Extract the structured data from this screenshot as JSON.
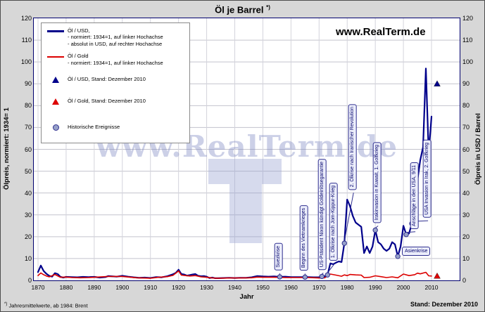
{
  "title": "Öl je Barrel",
  "title_mark": "*)",
  "site_label": "www.RealTerm.de",
  "watermark_text": "www.RealTerm.de",
  "footnote_mark": "*)",
  "footnote_text": "Jahresmittelwerte, ab 1984: Brent",
  "stand_label": "Stand: Dezember 2010",
  "legend": {
    "items": [
      {
        "marker": "line-blue",
        "lines": [
          "Öl / USD,",
          "- normiert: 1934=1, auf linker Hochachse",
          "- absolut in USD, auf rechter Hochachse"
        ]
      },
      {
        "marker": "line-red",
        "lines": [
          "Öl / Gold",
          "- normiert: 1934=1, auf linker Hochachse"
        ]
      },
      {
        "marker": "triangle-blue",
        "lines": [
          "Öl / USD, Stand: Dezember 2010"
        ]
      },
      {
        "marker": "triangle-red",
        "lines": [
          "Öl / Gold, Stand:  Dezember 2010"
        ]
      },
      {
        "marker": "circle",
        "lines": [
          "Historische Ereignisse"
        ]
      }
    ]
  },
  "chart_data": {
    "type": "line",
    "title": "Öl je Barrel",
    "xlabel": "Jahr",
    "ylabel_left": "Ölpreis, normiert: 1934= 1",
    "ylabel_right": "Ölpreis in USD / Barrel",
    "xlim": [
      1870,
      2020
    ],
    "ylim": [
      0,
      120
    ],
    "x_ticks": [
      1870,
      1880,
      1890,
      1900,
      1910,
      1920,
      1930,
      1940,
      1950,
      1960,
      1970,
      1980,
      1990,
      2000,
      2010
    ],
    "y_ticks": [
      0,
      10,
      20,
      30,
      40,
      50,
      60,
      70,
      80,
      90,
      100,
      110,
      120
    ],
    "grid": true,
    "legend_position": "top-left",
    "series": [
      {
        "name": "Öl / USD, normiert 1934=1",
        "color": "#00008B",
        "points": [
          [
            1870,
            3.8
          ],
          [
            1871,
            6.8
          ],
          [
            1872,
            4.3
          ],
          [
            1873,
            3.0
          ],
          [
            1874,
            2.1
          ],
          [
            1875,
            1.7
          ],
          [
            1876,
            3.3
          ],
          [
            1877,
            2.9
          ],
          [
            1878,
            1.6
          ],
          [
            1879,
            1.3
          ],
          [
            1880,
            1.6
          ],
          [
            1882,
            1.5
          ],
          [
            1884,
            1.4
          ],
          [
            1886,
            1.6
          ],
          [
            1888,
            1.5
          ],
          [
            1890,
            1.6
          ],
          [
            1892,
            1.3
          ],
          [
            1894,
            1.5
          ],
          [
            1895,
            2.0
          ],
          [
            1896,
            1.9
          ],
          [
            1898,
            1.7
          ],
          [
            1900,
            2.1
          ],
          [
            1902,
            1.7
          ],
          [
            1904,
            1.4
          ],
          [
            1906,
            1.2
          ],
          [
            1908,
            1.3
          ],
          [
            1910,
            1.1
          ],
          [
            1912,
            1.5
          ],
          [
            1914,
            1.4
          ],
          [
            1916,
            1.9
          ],
          [
            1918,
            2.8
          ],
          [
            1919,
            3.4
          ],
          [
            1920,
            4.9
          ],
          [
            1921,
            2.9
          ],
          [
            1922,
            2.7
          ],
          [
            1923,
            2.2
          ],
          [
            1924,
            2.4
          ],
          [
            1925,
            2.7
          ],
          [
            1926,
            2.9
          ],
          [
            1927,
            2.1
          ],
          [
            1928,
            1.9
          ],
          [
            1929,
            2.0
          ],
          [
            1930,
            1.7
          ],
          [
            1931,
            1.1
          ],
          [
            1932,
            1.3
          ],
          [
            1933,
            1.0
          ],
          [
            1934,
            1.0
          ],
          [
            1936,
            1.1
          ],
          [
            1938,
            1.2
          ],
          [
            1940,
            1.1
          ],
          [
            1942,
            1.2
          ],
          [
            1944,
            1.2
          ],
          [
            1946,
            1.4
          ],
          [
            1948,
            2.0
          ],
          [
            1950,
            1.8
          ],
          [
            1952,
            1.7
          ],
          [
            1954,
            1.8
          ],
          [
            1956,
            1.6
          ],
          [
            1958,
            1.7
          ],
          [
            1960,
            1.5
          ],
          [
            1962,
            1.5
          ],
          [
            1964,
            1.5
          ],
          [
            1966,
            1.5
          ],
          [
            1968,
            1.4
          ],
          [
            1970,
            1.4
          ],
          [
            1971,
            1.8
          ],
          [
            1972,
            1.9
          ],
          [
            1973,
            2.5
          ],
          [
            1974,
            7.8
          ],
          [
            1975,
            7.4
          ],
          [
            1976,
            8.1
          ],
          [
            1977,
            8.7
          ],
          [
            1978,
            8.4
          ],
          [
            1979,
            17.0
          ],
          [
            1980,
            37.0
          ],
          [
            1981,
            34.0
          ],
          [
            1982,
            29.5
          ],
          [
            1983,
            26.5
          ],
          [
            1984,
            25.5
          ],
          [
            1985,
            24.5
          ],
          [
            1986,
            12.5
          ],
          [
            1987,
            15.5
          ],
          [
            1988,
            12.5
          ],
          [
            1989,
            15.5
          ],
          [
            1990,
            23.0
          ],
          [
            1991,
            17.5
          ],
          [
            1992,
            16.5
          ],
          [
            1993,
            14.5
          ],
          [
            1994,
            13.5
          ],
          [
            1995,
            14.5
          ],
          [
            1996,
            17.5
          ],
          [
            1997,
            16.5
          ],
          [
            1998,
            11.0
          ],
          [
            1999,
            15.5
          ],
          [
            2000,
            25.0
          ],
          [
            2001,
            21.0
          ],
          [
            2002,
            21.5
          ],
          [
            2003,
            26.0
          ],
          [
            2004,
            33.0
          ],
          [
            2005,
            46.0
          ],
          [
            2006,
            55.0
          ],
          [
            2007,
            61.0
          ],
          [
            2008,
            97.0
          ],
          [
            2009,
            58.0
          ],
          [
            2010,
            75.0
          ]
        ]
      },
      {
        "name": "Öl / Gold, normiert 1934=1",
        "color": "#DC0000",
        "points": [
          [
            1870,
            2.2
          ],
          [
            1871,
            3.4
          ],
          [
            1872,
            2.6
          ],
          [
            1873,
            2.0
          ],
          [
            1874,
            1.6
          ],
          [
            1876,
            2.7
          ],
          [
            1878,
            1.4
          ],
          [
            1880,
            1.5
          ],
          [
            1882,
            1.3
          ],
          [
            1885,
            1.2
          ],
          [
            1888,
            1.3
          ],
          [
            1890,
            1.4
          ],
          [
            1895,
            1.8
          ],
          [
            1900,
            1.8
          ],
          [
            1905,
            1.2
          ],
          [
            1910,
            1.0
          ],
          [
            1913,
            1.4
          ],
          [
            1916,
            1.7
          ],
          [
            1918,
            2.3
          ],
          [
            1920,
            4.3
          ],
          [
            1921,
            2.4
          ],
          [
            1922,
            2.3
          ],
          [
            1924,
            2.0
          ],
          [
            1926,
            2.2
          ],
          [
            1928,
            1.6
          ],
          [
            1930,
            1.4
          ],
          [
            1932,
            1.1
          ],
          [
            1934,
            1.0
          ],
          [
            1938,
            1.1
          ],
          [
            1942,
            1.1
          ],
          [
            1946,
            1.2
          ],
          [
            1948,
            1.5
          ],
          [
            1950,
            1.4
          ],
          [
            1954,
            1.4
          ],
          [
            1958,
            1.3
          ],
          [
            1962,
            1.3
          ],
          [
            1966,
            1.3
          ],
          [
            1970,
            1.1
          ],
          [
            1972,
            1.2
          ],
          [
            1974,
            2.9
          ],
          [
            1976,
            2.4
          ],
          [
            1978,
            1.9
          ],
          [
            1979,
            2.5
          ],
          [
            1980,
            2.2
          ],
          [
            1981,
            2.7
          ],
          [
            1983,
            2.5
          ],
          [
            1985,
            2.4
          ],
          [
            1986,
            1.3
          ],
          [
            1988,
            1.4
          ],
          [
            1990,
            2.1
          ],
          [
            1992,
            1.7
          ],
          [
            1994,
            1.3
          ],
          [
            1996,
            1.6
          ],
          [
            1998,
            1.2
          ],
          [
            2000,
            2.9
          ],
          [
            2002,
            2.2
          ],
          [
            2004,
            2.6
          ],
          [
            2005,
            3.3
          ],
          [
            2006,
            3.0
          ],
          [
            2008,
            3.7
          ],
          [
            2009,
            2.1
          ],
          [
            2010,
            2.0
          ]
        ]
      }
    ],
    "standalone_markers": [
      {
        "name": "Öl / USD, Stand: Dezember 2010",
        "shape": "triangle",
        "color": "#00008B",
        "x": 2012,
        "y": 90
      },
      {
        "name": "Öl / Gold, Stand: Dezember 2010",
        "shape": "triangle",
        "color": "#DC0000",
        "x": 2012,
        "y": 2
      }
    ],
    "events": [
      {
        "label": "Suezkrise",
        "year": 1956,
        "value": 1.6
      },
      {
        "label": "Beginn des Vietnamkrieges",
        "year": 1965,
        "value": 1.5
      },
      {
        "label": "US-Präsident Nixon kündigt Goldeinlösegarantie",
        "year": 1971,
        "value": 1.8
      },
      {
        "label": "1. Ölkrise nach Jom-Kippur-Krieg",
        "year": 1973,
        "value": 2.5
      },
      {
        "label": "2. Ölkrise nach Iranischer Revolution",
        "year": 1979,
        "value": 17.0
      },
      {
        "label": "Irakinvasion in Kuwait, 1. Golfkrieg",
        "year": 1990,
        "value": 23.0
      },
      {
        "label": "Asienkrise",
        "year": 1998,
        "value": 11.0
      },
      {
        "label": "Anschläge in den USA, 9/11",
        "year": 2001,
        "value": 21.0
      },
      {
        "label": "USA Invasion in Irak, 2. Golfkrieg",
        "year": 2003,
        "value": 26.0
      }
    ]
  }
}
